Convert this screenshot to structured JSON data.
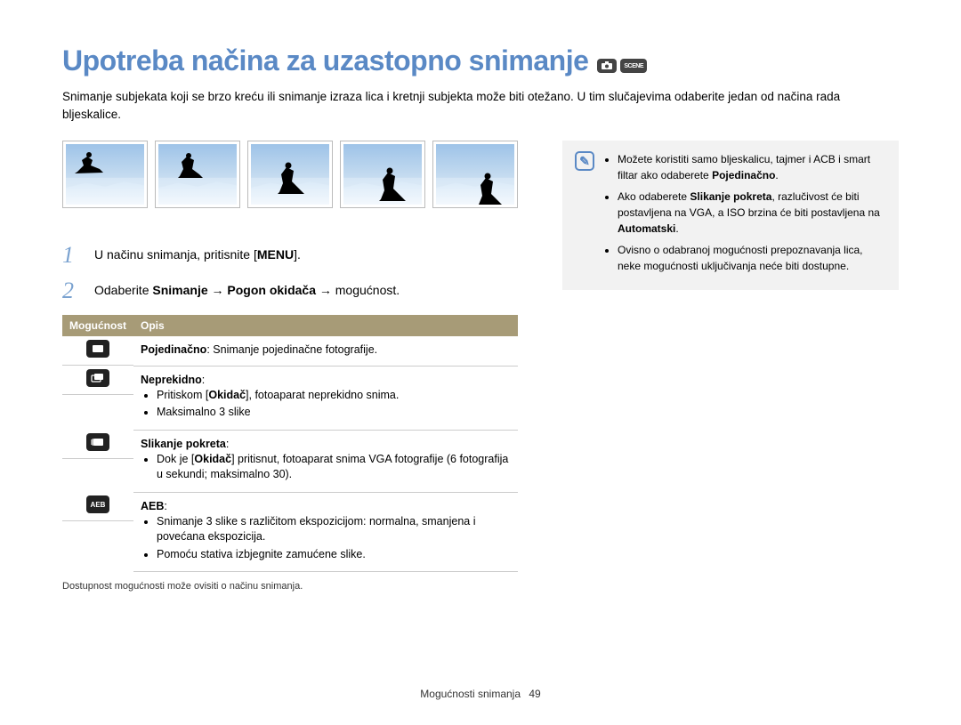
{
  "title": "Upotreba načina za uzastopno snimanje",
  "mode_badges": [
    "📷p",
    "SCENE"
  ],
  "intro": "Snimanje subjekata koji se brzo kreću ili snimanje izraza lica i kretnji subjekta može biti otežano. U tim slučajevima odaberite jedan od načina rada bljeskalice.",
  "steps": {
    "s1_prefix": "U načinu snimanja, pritisnite [",
    "s1_key": "MENU",
    "s1_suffix": "].",
    "s2_prefix": "Odaberite ",
    "s2_b1": "Snimanje",
    "s2_arrow1": " → ",
    "s2_b2": "Pogon okidača",
    "s2_arrow2": " → ",
    "s2_suffix": "mogućnost."
  },
  "table": {
    "h1": "Mogućnost",
    "h2": "Opis",
    "rows": [
      {
        "title": "Pojedinačno",
        "after_title": ": Snimanje pojedinačne fotografije."
      },
      {
        "title": "Neprekidno",
        "after_title": ":",
        "bullets_html": [
          "Pritiskom [<b>Okidač</b>], fotoaparat neprekidno snima.",
          "Maksimalno 3 slike"
        ]
      },
      {
        "title": "Slikanje pokreta",
        "after_title": ":",
        "bullets_html": [
          "Dok je [<b>Okidač</b>] pritisnut, fotoaparat snima VGA fotografije (6 fotografija u sekundi;  maksimalno 30)."
        ]
      },
      {
        "title": "AEB",
        "after_title": ":",
        "bullets_html": [
          "Snimanje 3 slike s različitom ekspozicijom: normalna, smanjena i povećana ekspozicija.",
          "Pomoću stativa izbjegnite zamućene slike."
        ]
      }
    ],
    "footnote": "Dostupnost mogućnosti može ovisiti o načinu snimanja."
  },
  "info": {
    "bullets_html": [
      "Možete koristiti samo bljeskalicu, tajmer i ACB i smart filtar ako odaberete <b>Pojedinačno</b>.",
      "Ako odaberete <b>Slikanje pokreta</b>, razlučivost će biti postavljena na VGA, a ISO brzina će biti postavljena na <b>Automatski</b>.",
      "Ovisno o odabranoj mogućnosti prepoznavanja lica, neke mogućnosti uključivanja neće biti dostupne."
    ]
  },
  "footer": {
    "section": "Mogućnosti snimanja",
    "page": "49"
  },
  "colors": {
    "title": "#5a89c5",
    "table_header_bg": "#a79b77",
    "info_bg": "#f2f2f2"
  }
}
